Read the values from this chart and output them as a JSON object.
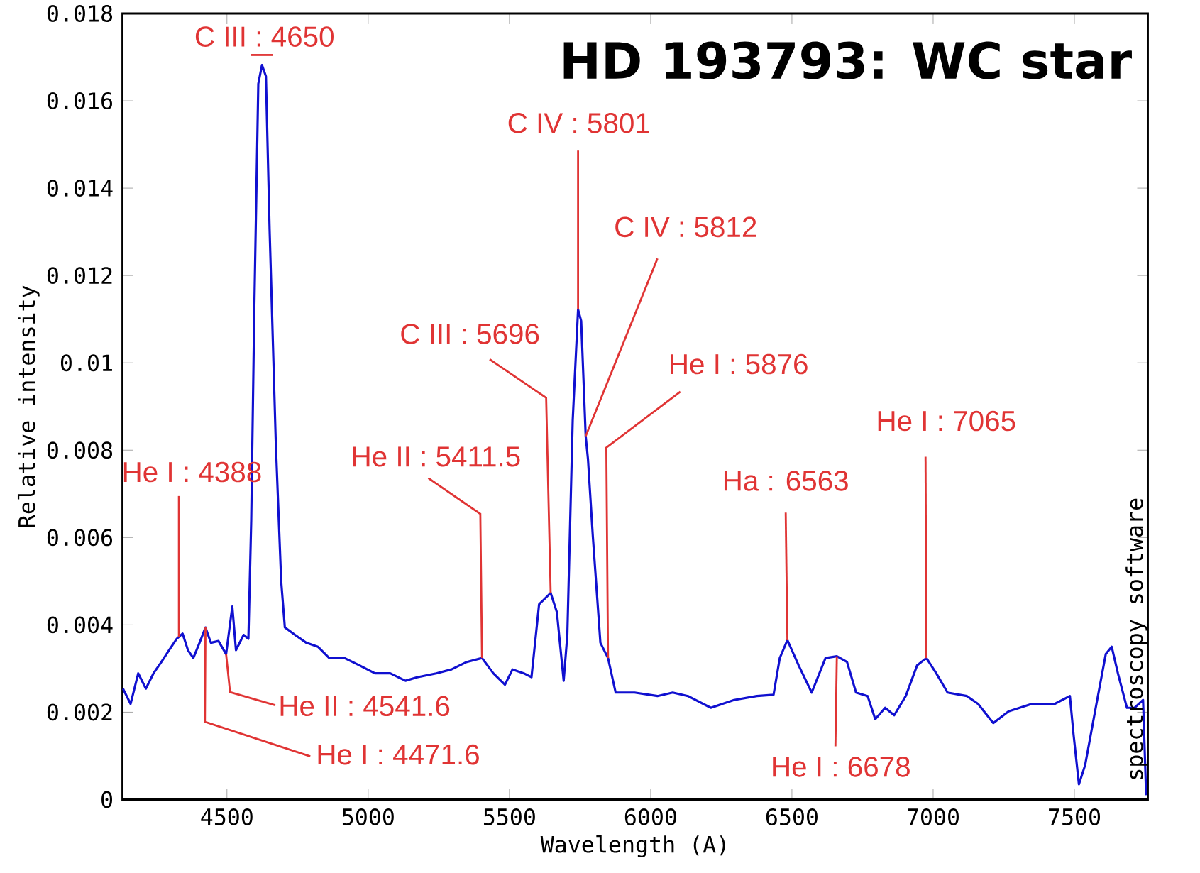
{
  "chart_data": {
    "type": "line",
    "title": "HD 193793: WC star",
    "xlabel": "Wavelength (A)",
    "ylabel": "Relative intensity",
    "xlim": [
      4130,
      7760
    ],
    "ylim": [
      0,
      0.018
    ],
    "xticks": [
      4500,
      5000,
      5500,
      6000,
      6500,
      7000,
      7500
    ],
    "yticks": [
      0,
      0.002,
      0.004,
      0.006,
      0.008,
      0.01,
      0.012,
      0.014,
      0.016,
      0.018
    ],
    "x": [
      4132,
      4159,
      4186,
      4213,
      4240,
      4268,
      4295,
      4322,
      4343,
      4362,
      4381,
      4403,
      4424,
      4443,
      4470,
      4497,
      4519,
      4532,
      4559,
      4576,
      4586,
      4597,
      4611,
      4624,
      4638,
      4651,
      4673,
      4692,
      4705,
      4741,
      4781,
      4822,
      4862,
      4916,
      4970,
      5024,
      5078,
      5132,
      5173,
      5241,
      5295,
      5349,
      5403,
      5443,
      5484,
      5511,
      5551,
      5578,
      5605,
      5646,
      5668,
      5692,
      5705,
      5724,
      5743,
      5754,
      5770,
      5778,
      5795,
      5822,
      5849,
      5876,
      5943,
      6024,
      6078,
      6132,
      6213,
      6295,
      6376,
      6435,
      6457,
      6484,
      6524,
      6570,
      6619,
      6659,
      6695,
      6727,
      6768,
      6795,
      6830,
      6862,
      6903,
      6943,
      6976,
      7011,
      7051,
      7119,
      7159,
      7213,
      7267,
      7349,
      7430,
      7484,
      7497,
      7516,
      7538,
      7578,
      7611,
      7632,
      7654,
      7686,
      7713,
      7743,
      7754
    ],
    "series": [
      {
        "color": "#1010d0",
        "values": [
          0.00254,
          0.00219,
          0.00289,
          0.00254,
          0.00289,
          0.00315,
          0.00342,
          0.00368,
          0.0038,
          0.00342,
          0.00324,
          0.00359,
          0.00394,
          0.00359,
          0.00363,
          0.00333,
          0.00442,
          0.00342,
          0.00377,
          0.00368,
          0.0064,
          0.0113,
          0.01639,
          0.01682,
          0.01656,
          0.01306,
          0.00815,
          0.005,
          0.00394,
          0.00377,
          0.00359,
          0.0035,
          0.00324,
          0.00324,
          0.00307,
          0.00289,
          0.00289,
          0.00272,
          0.0028,
          0.00289,
          0.00298,
          0.00315,
          0.00324,
          0.00289,
          0.00263,
          0.00298,
          0.00289,
          0.0028,
          0.00447,
          0.00473,
          0.00429,
          0.00272,
          0.00377,
          0.00868,
          0.01122,
          0.01096,
          0.00832,
          0.0078,
          0.00605,
          0.00359,
          0.00324,
          0.00245,
          0.00245,
          0.00237,
          0.00245,
          0.00237,
          0.0021,
          0.00228,
          0.00237,
          0.0024,
          0.00324,
          0.00365,
          0.00307,
          0.00245,
          0.00324,
          0.00328,
          0.00315,
          0.00245,
          0.00237,
          0.00184,
          0.0021,
          0.00193,
          0.00237,
          0.00307,
          0.00324,
          0.00289,
          0.00245,
          0.00237,
          0.00219,
          0.00175,
          0.00202,
          0.00219,
          0.00219,
          0.00237,
          0.00149,
          0.00035,
          0.00079,
          0.00219,
          0.00333,
          0.0035,
          0.00289,
          0.0021,
          0.0021,
          0.00228,
          0.0001
        ]
      }
    ],
    "annotations": [
      {
        "text": "C III : 4650",
        "x": 4624,
        "y": 0.01682
      },
      {
        "text": "He I : 4388",
        "x": 4330,
        "y": 0.00373
      },
      {
        "text": "He II : 4541.6",
        "x": 4497,
        "y": 0.00333
      },
      {
        "text": "He I : 4471.6",
        "x": 4424,
        "y": 0.00394
      },
      {
        "text": "He II : 5411.5",
        "x": 5403,
        "y": 0.00324
      },
      {
        "text": "C III : 5696",
        "x": 5646,
        "y": 0.00473
      },
      {
        "text": "C IV : 5801",
        "x": 5743,
        "y": 0.01122
      },
      {
        "text": "C IV : 5812",
        "x": 5770,
        "y": 0.00832
      },
      {
        "text": "He I : 5876",
        "x": 5849,
        "y": 0.00324
      },
      {
        "text": "Ha : 6563",
        "x": 6484,
        "y": 0.00365
      },
      {
        "text": "He I : 6678",
        "x": 6659,
        "y": 0.00328
      },
      {
        "text": "He I : 7065",
        "x": 6976,
        "y": 0.00324
      },
      "spectroscopy software"
    ]
  }
}
